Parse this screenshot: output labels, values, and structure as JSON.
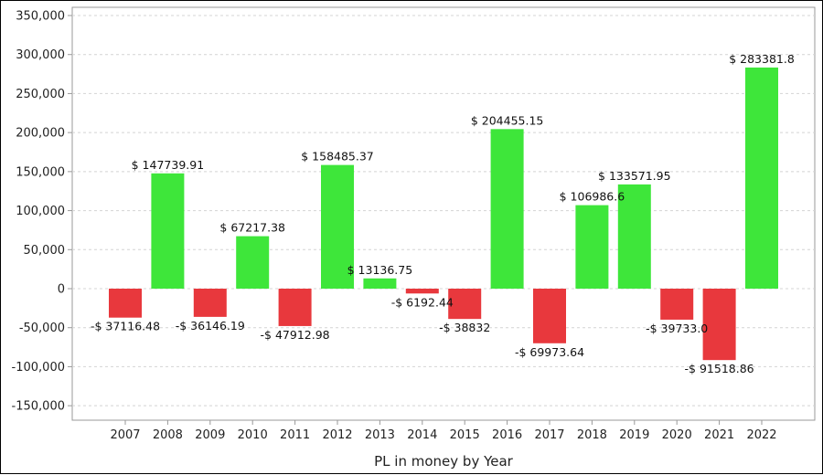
{
  "chart_data": {
    "type": "bar",
    "xlabel": "PL in money by Year",
    "ylabel": "",
    "ylim": [
      -175000,
      350000
    ],
    "yticks": [
      "350,000",
      "300,000",
      "250,000",
      "200,000",
      "150,000",
      "100,000",
      "50,000",
      "0",
      "-50,000",
      "-100,000",
      "-150,000"
    ],
    "ytick_values": [
      350000,
      300000,
      250000,
      200000,
      150000,
      100000,
      50000,
      0,
      -50000,
      -100000,
      -150000
    ],
    "categories": [
      "2007",
      "2008",
      "2009",
      "2010",
      "2011",
      "2012",
      "2013",
      "2014",
      "2015",
      "2016",
      "2017",
      "2018",
      "2019",
      "2020",
      "2021",
      "2022"
    ],
    "values": [
      -37116.48,
      147739.91,
      -36146.19,
      67217.38,
      -47912.98,
      158485.37,
      13136.75,
      -6192.44,
      -38832,
      204455.15,
      -69973.64,
      106986.6,
      133571.95,
      -39733.0,
      -91518.86,
      283381.8
    ],
    "data_labels": [
      "-$ 37116.48",
      "$ 147739.91",
      "-$ 36146.19",
      "$ 67217.38",
      "-$ 47912.98",
      "$ 158485.37",
      "$ 13136.75",
      "-$ 6192.44",
      "-$ 38832",
      "$ 204455.15",
      "-$ 69973.64",
      "$ 106986.6",
      "$ 133571.95",
      "-$ 39733.0",
      "-$ 91518.86",
      "$ 283381.8"
    ],
    "grid": true,
    "colors": {
      "positive": "#3ee63a",
      "negative": "#e8383d",
      "grid": "#d4d4d4",
      "axis": "#999999"
    }
  }
}
